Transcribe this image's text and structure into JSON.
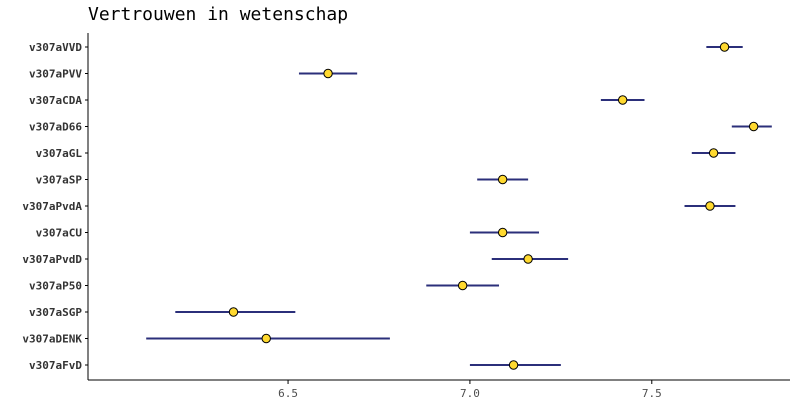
{
  "colors": {
    "interval": "#2b2f7a",
    "point_fill": "#ffd92f",
    "point_stroke": "#000000",
    "axis": "#000000",
    "text": "#333333"
  },
  "chart_data": {
    "type": "scatter",
    "title": "Vertrouwen in wetenschap",
    "xlabel": "",
    "ylabel": "",
    "xlim": [
      5.95,
      7.88
    ],
    "xticks": [
      6.5,
      7.0,
      7.5
    ],
    "xtick_labels": [
      "6.5",
      "7.0",
      "7.5"
    ],
    "grid": false,
    "categories": [
      "v307aVVD",
      "v307aPVV",
      "v307aCDA",
      "v307aD66",
      "v307aGL",
      "v307aSP",
      "v307aPvdA",
      "v307aCU",
      "v307aPvdD",
      "v307aP50",
      "v307aSGP",
      "v307aDENK",
      "v307aFvD"
    ],
    "values": [
      7.7,
      6.61,
      7.42,
      7.78,
      7.67,
      7.09,
      7.66,
      7.09,
      7.16,
      6.98,
      6.35,
      6.44,
      7.12
    ],
    "lower": [
      7.65,
      6.53,
      7.36,
      7.72,
      7.61,
      7.02,
      7.59,
      7.0,
      7.06,
      6.88,
      6.19,
      6.11,
      7.0
    ],
    "upper": [
      7.75,
      6.69,
      7.48,
      7.83,
      7.73,
      7.16,
      7.73,
      7.19,
      7.27,
      7.08,
      6.52,
      6.78,
      7.25
    ]
  }
}
